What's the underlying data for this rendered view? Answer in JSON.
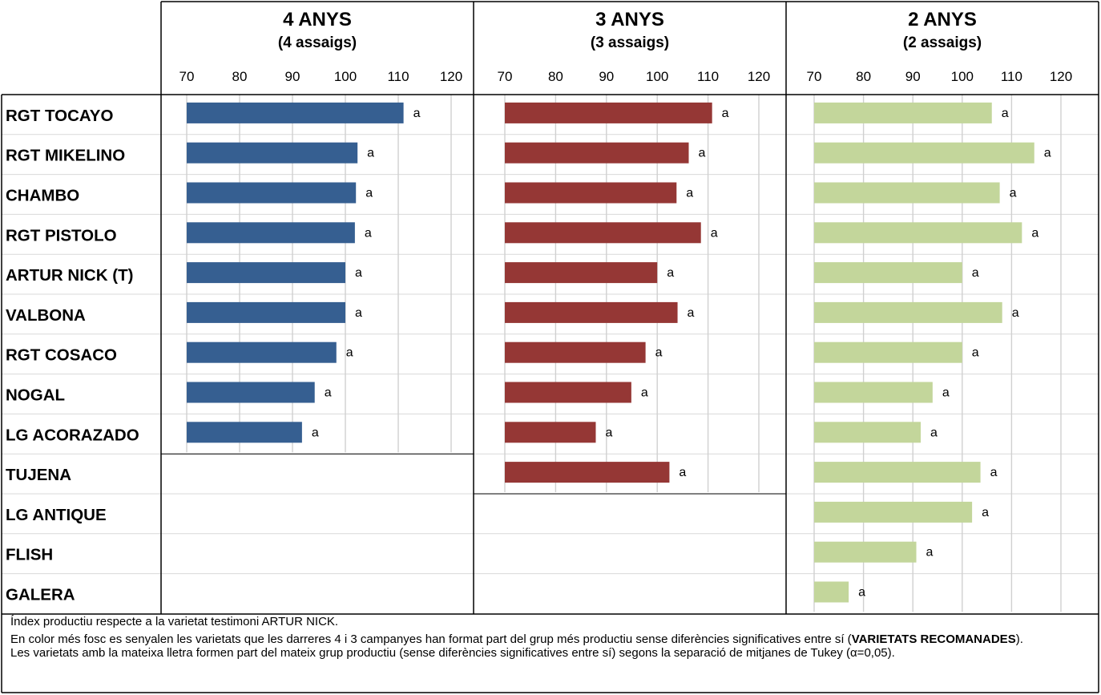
{
  "chart_data": [
    {
      "type": "bar",
      "title": "4 ANYS",
      "subtitle": "(4 assaigs)",
      "categories": [
        "RGT TOCAYO",
        "RGT MIKELINO",
        "CHAMBO",
        "RGT PISTOLO",
        "ARTUR NICK (T)",
        "VALBONA",
        "RGT COSACO",
        "NOGAL",
        "LG ACORAZADO"
      ],
      "values": [
        111,
        102.3,
        102,
        101.8,
        100,
        100,
        98.3,
        94.2,
        91.8
      ],
      "data_labels": [
        "a",
        "a",
        "a",
        "a",
        "a",
        "a",
        "a",
        "a",
        "a"
      ],
      "xlim": [
        70,
        120
      ],
      "xticks": [
        "70",
        "80",
        "90",
        "100",
        "110",
        "120"
      ],
      "color": "#365f91",
      "grid": true
    },
    {
      "type": "bar",
      "title": "3 ANYS",
      "subtitle": "(3 assaigs)",
      "categories": [
        "RGT TOCAYO",
        "RGT MIKELINO",
        "CHAMBO",
        "RGT PISTOLO",
        "ARTUR NICK (T)",
        "VALBONA",
        "RGT COSACO",
        "NOGAL",
        "LG ACORAZADO",
        "TUJENA"
      ],
      "values": [
        110.8,
        106.2,
        103.8,
        108.6,
        100,
        104,
        97.7,
        94.9,
        87.9,
        102.4
      ],
      "data_labels": [
        "a",
        "a",
        "a",
        "a",
        "a",
        "a",
        "a",
        "a",
        "a",
        "a"
      ],
      "xlim": [
        70,
        120
      ],
      "xticks": [
        "70",
        "80",
        "90",
        "100",
        "110",
        "120"
      ],
      "color": "#953735",
      "grid": true
    },
    {
      "type": "bar",
      "title": "2 ANYS",
      "subtitle": "(2 assaigs)",
      "categories": [
        "RGT TOCAYO",
        "RGT MIKELINO",
        "CHAMBO",
        "RGT PISTOLO",
        "ARTUR NICK (T)",
        "VALBONA",
        "RGT COSACO",
        "NOGAL",
        "LG ACORAZADO",
        "TUJENA",
        "LG ANTIQUE",
        "FLISH",
        "GALERA"
      ],
      "values": [
        106,
        114.6,
        107.6,
        112.1,
        100,
        108.1,
        100,
        94,
        91.6,
        103.7,
        102,
        90.7,
        77
      ],
      "data_labels": [
        "a",
        "a",
        "a",
        "a",
        "a",
        "a",
        "a",
        "a",
        "a",
        "a",
        "a",
        "a",
        "a"
      ],
      "xlim": [
        70,
        120
      ],
      "xticks": [
        "70",
        "80",
        "90",
        "100",
        "110",
        "120"
      ],
      "color": "#c3d69b",
      "grid": true
    }
  ],
  "row_labels": [
    "RGT TOCAYO",
    "RGT MIKELINO",
    "CHAMBO",
    "RGT PISTOLO",
    "ARTUR NICK (T)",
    "VALBONA",
    "RGT COSACO",
    "NOGAL",
    "LG ACORAZADO",
    "TUJENA",
    "LG ANTIQUE",
    "FLISH",
    "GALERA"
  ],
  "footnotes": {
    "line1": "Índex productiu respecte a la varietat testimoni ARTUR NICK.",
    "line2_a": "En color més fosc es senyalen les varietats que les darreres 4 i 3 campanyes han format part del grup més productiu sense diferències significatives entre sí (",
    "line2_b": "VARIETATS RECOMANADES",
    "line2_c": ").",
    "line3": "Les varietats amb la mateixa lletra formen part del mateix grup productiu (sense diferències significatives entre sí) segons la separació de mitjanes de Tukey (α=0,05)."
  }
}
